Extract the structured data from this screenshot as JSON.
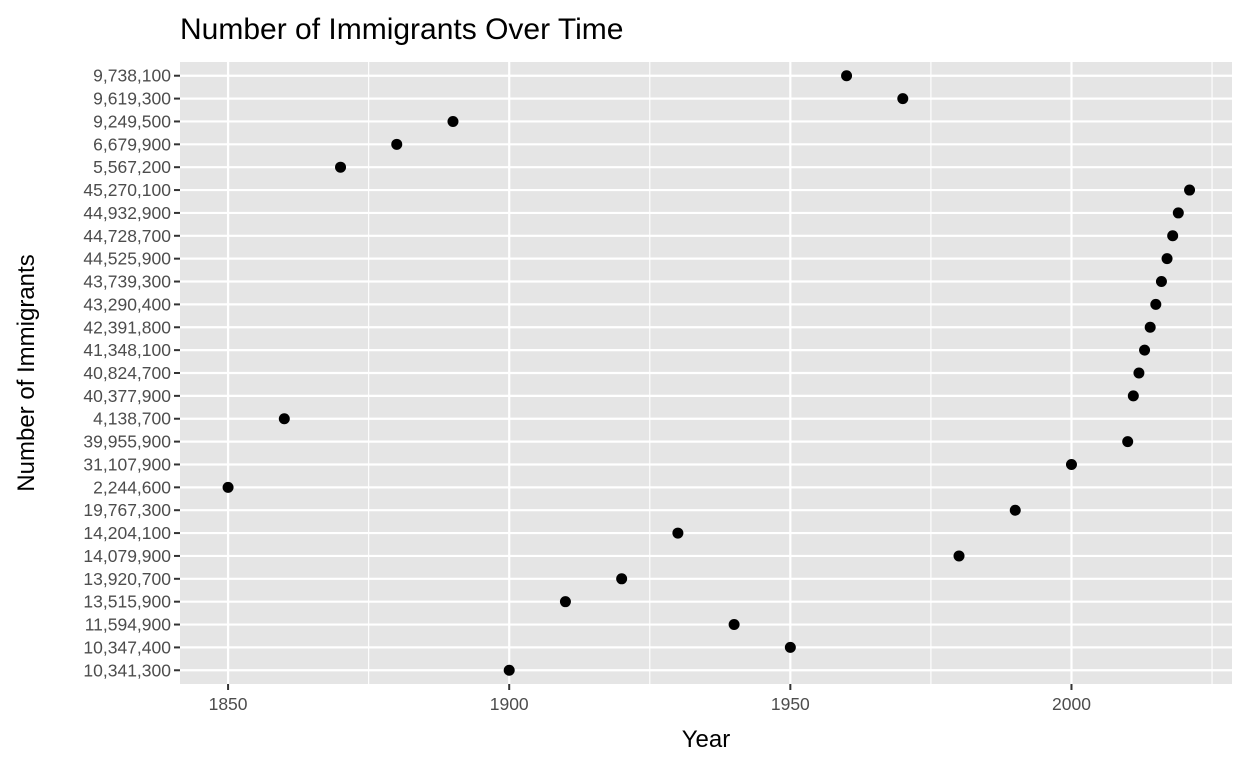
{
  "chart_data": {
    "type": "scatter",
    "title": "Number of Immigrants Over Time",
    "xlabel": "Year",
    "ylabel": "Number of Immigrants",
    "x_ticks": [
      1850,
      1900,
      1950,
      2000
    ],
    "xlim": [
      1841.45,
      2028.55
    ],
    "y_categories": [
      "10,341,300",
      "10,347,400",
      "11,594,900",
      "13,515,900",
      "13,920,700",
      "14,079,900",
      "14,204,100",
      "19,767,300",
      "2,244,600",
      "31,107,900",
      "39,955,900",
      "4,138,700",
      "40,377,900",
      "40,824,700",
      "41,348,100",
      "42,391,800",
      "43,290,400",
      "43,739,300",
      "44,525,900",
      "44,728,700",
      "44,932,900",
      "45,270,100",
      "5,567,200",
      "6,679,900",
      "9,249,500",
      "9,619,300",
      "9,738,100"
    ],
    "points": [
      {
        "x": 1850,
        "y": "2,244,600"
      },
      {
        "x": 1860,
        "y": "4,138,700"
      },
      {
        "x": 1870,
        "y": "5,567,200"
      },
      {
        "x": 1880,
        "y": "6,679,900"
      },
      {
        "x": 1890,
        "y": "9,249,500"
      },
      {
        "x": 1900,
        "y": "10,341,300"
      },
      {
        "x": 1910,
        "y": "13,515,900"
      },
      {
        "x": 1920,
        "y": "13,920,700"
      },
      {
        "x": 1930,
        "y": "14,204,100"
      },
      {
        "x": 1940,
        "y": "11,594,900"
      },
      {
        "x": 1950,
        "y": "10,347,400"
      },
      {
        "x": 1960,
        "y": "9,738,100"
      },
      {
        "x": 1970,
        "y": "9,619,300"
      },
      {
        "x": 1980,
        "y": "14,079,900"
      },
      {
        "x": 1990,
        "y": "19,767,300"
      },
      {
        "x": 2000,
        "y": "31,107,900"
      },
      {
        "x": 2010,
        "y": "39,955,900"
      },
      {
        "x": 2011,
        "y": "40,377,900"
      },
      {
        "x": 2012,
        "y": "40,824,700"
      },
      {
        "x": 2013,
        "y": "41,348,100"
      },
      {
        "x": 2014,
        "y": "42,391,800"
      },
      {
        "x": 2015,
        "y": "43,290,400"
      },
      {
        "x": 2016,
        "y": "43,739,300"
      },
      {
        "x": 2017,
        "y": "44,525,900"
      },
      {
        "x": 2018,
        "y": "44,728,700"
      },
      {
        "x": 2019,
        "y": "44,932,900"
      },
      {
        "x": 2021,
        "y": "45,270,100"
      }
    ],
    "grid": true,
    "colors": {
      "panel": "#e5e5e5",
      "grid": "#ffffff",
      "point": "#000000",
      "tick_text": "#4d4d4d"
    }
  }
}
